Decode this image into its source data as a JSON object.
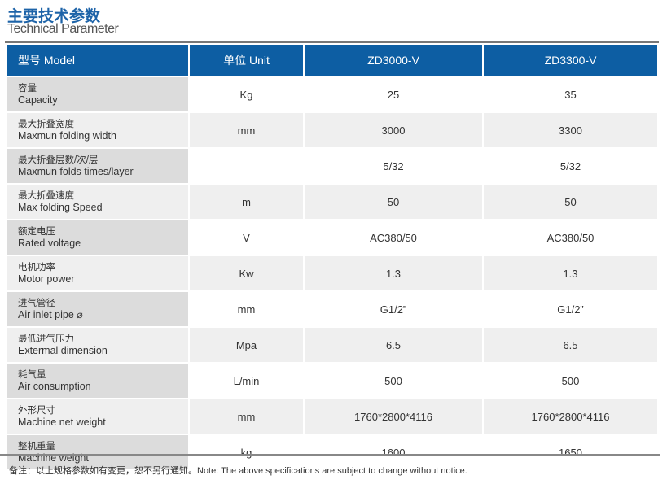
{
  "title_zh": "主要技术参数",
  "title_en": "Technical Parameter",
  "header": {
    "model": "型号 Model",
    "unit": "单位 Unit",
    "col1": "ZD3000-V",
    "col2": "ZD3300-V"
  },
  "rows": [
    {
      "zh": "容量",
      "en": "Capacity",
      "unit": "Kg",
      "v1": "25",
      "v2": "35"
    },
    {
      "zh": "最大折叠宽度",
      "en": "Maxmun folding width",
      "unit": "mm",
      "v1": "3000",
      "v2": "3300"
    },
    {
      "zh": "最大折叠层数/次/层",
      "en": "Maxmun folds times/layer",
      "unit": "",
      "v1": "5/32",
      "v2": "5/32"
    },
    {
      "zh": "最大折叠速度",
      "en": "Max folding Speed",
      "unit": "m",
      "v1": "50",
      "v2": "50"
    },
    {
      "zh": "额定电压",
      "en": "Rated voltage",
      "unit": "V",
      "v1": "AC380/50",
      "v2": "AC380/50"
    },
    {
      "zh": "电机功率",
      "en": "Motor power",
      "unit": "Kw",
      "v1": "1.3",
      "v2": "1.3"
    },
    {
      "zh": "进气管径",
      "en": "Air inlet pipe ⌀",
      "unit": "mm",
      "v1": "G1/2”",
      "v2": "G1/2”"
    },
    {
      "zh": "最低进气压力",
      "en": "Extermal dimension",
      "unit": "Mpa",
      "v1": "6.5",
      "v2": "6.5"
    },
    {
      "zh": "耗气量",
      "en": "Air consumption",
      "unit": "L/min",
      "v1": "500",
      "v2": "500"
    },
    {
      "zh": "外形尺寸",
      "en": "Machine net weight",
      "unit": "mm",
      "v1": "1760*2800*4116",
      "v2": "1760*2800*4116"
    },
    {
      "zh": "整机重量",
      "en": "Machine weight",
      "unit": "kg",
      "v1": "1600",
      "v2": "1650"
    }
  ],
  "note": "备注：以上规格参数如有变更，恕不另行通知。Note: The above specifications are subject to change without notice."
}
